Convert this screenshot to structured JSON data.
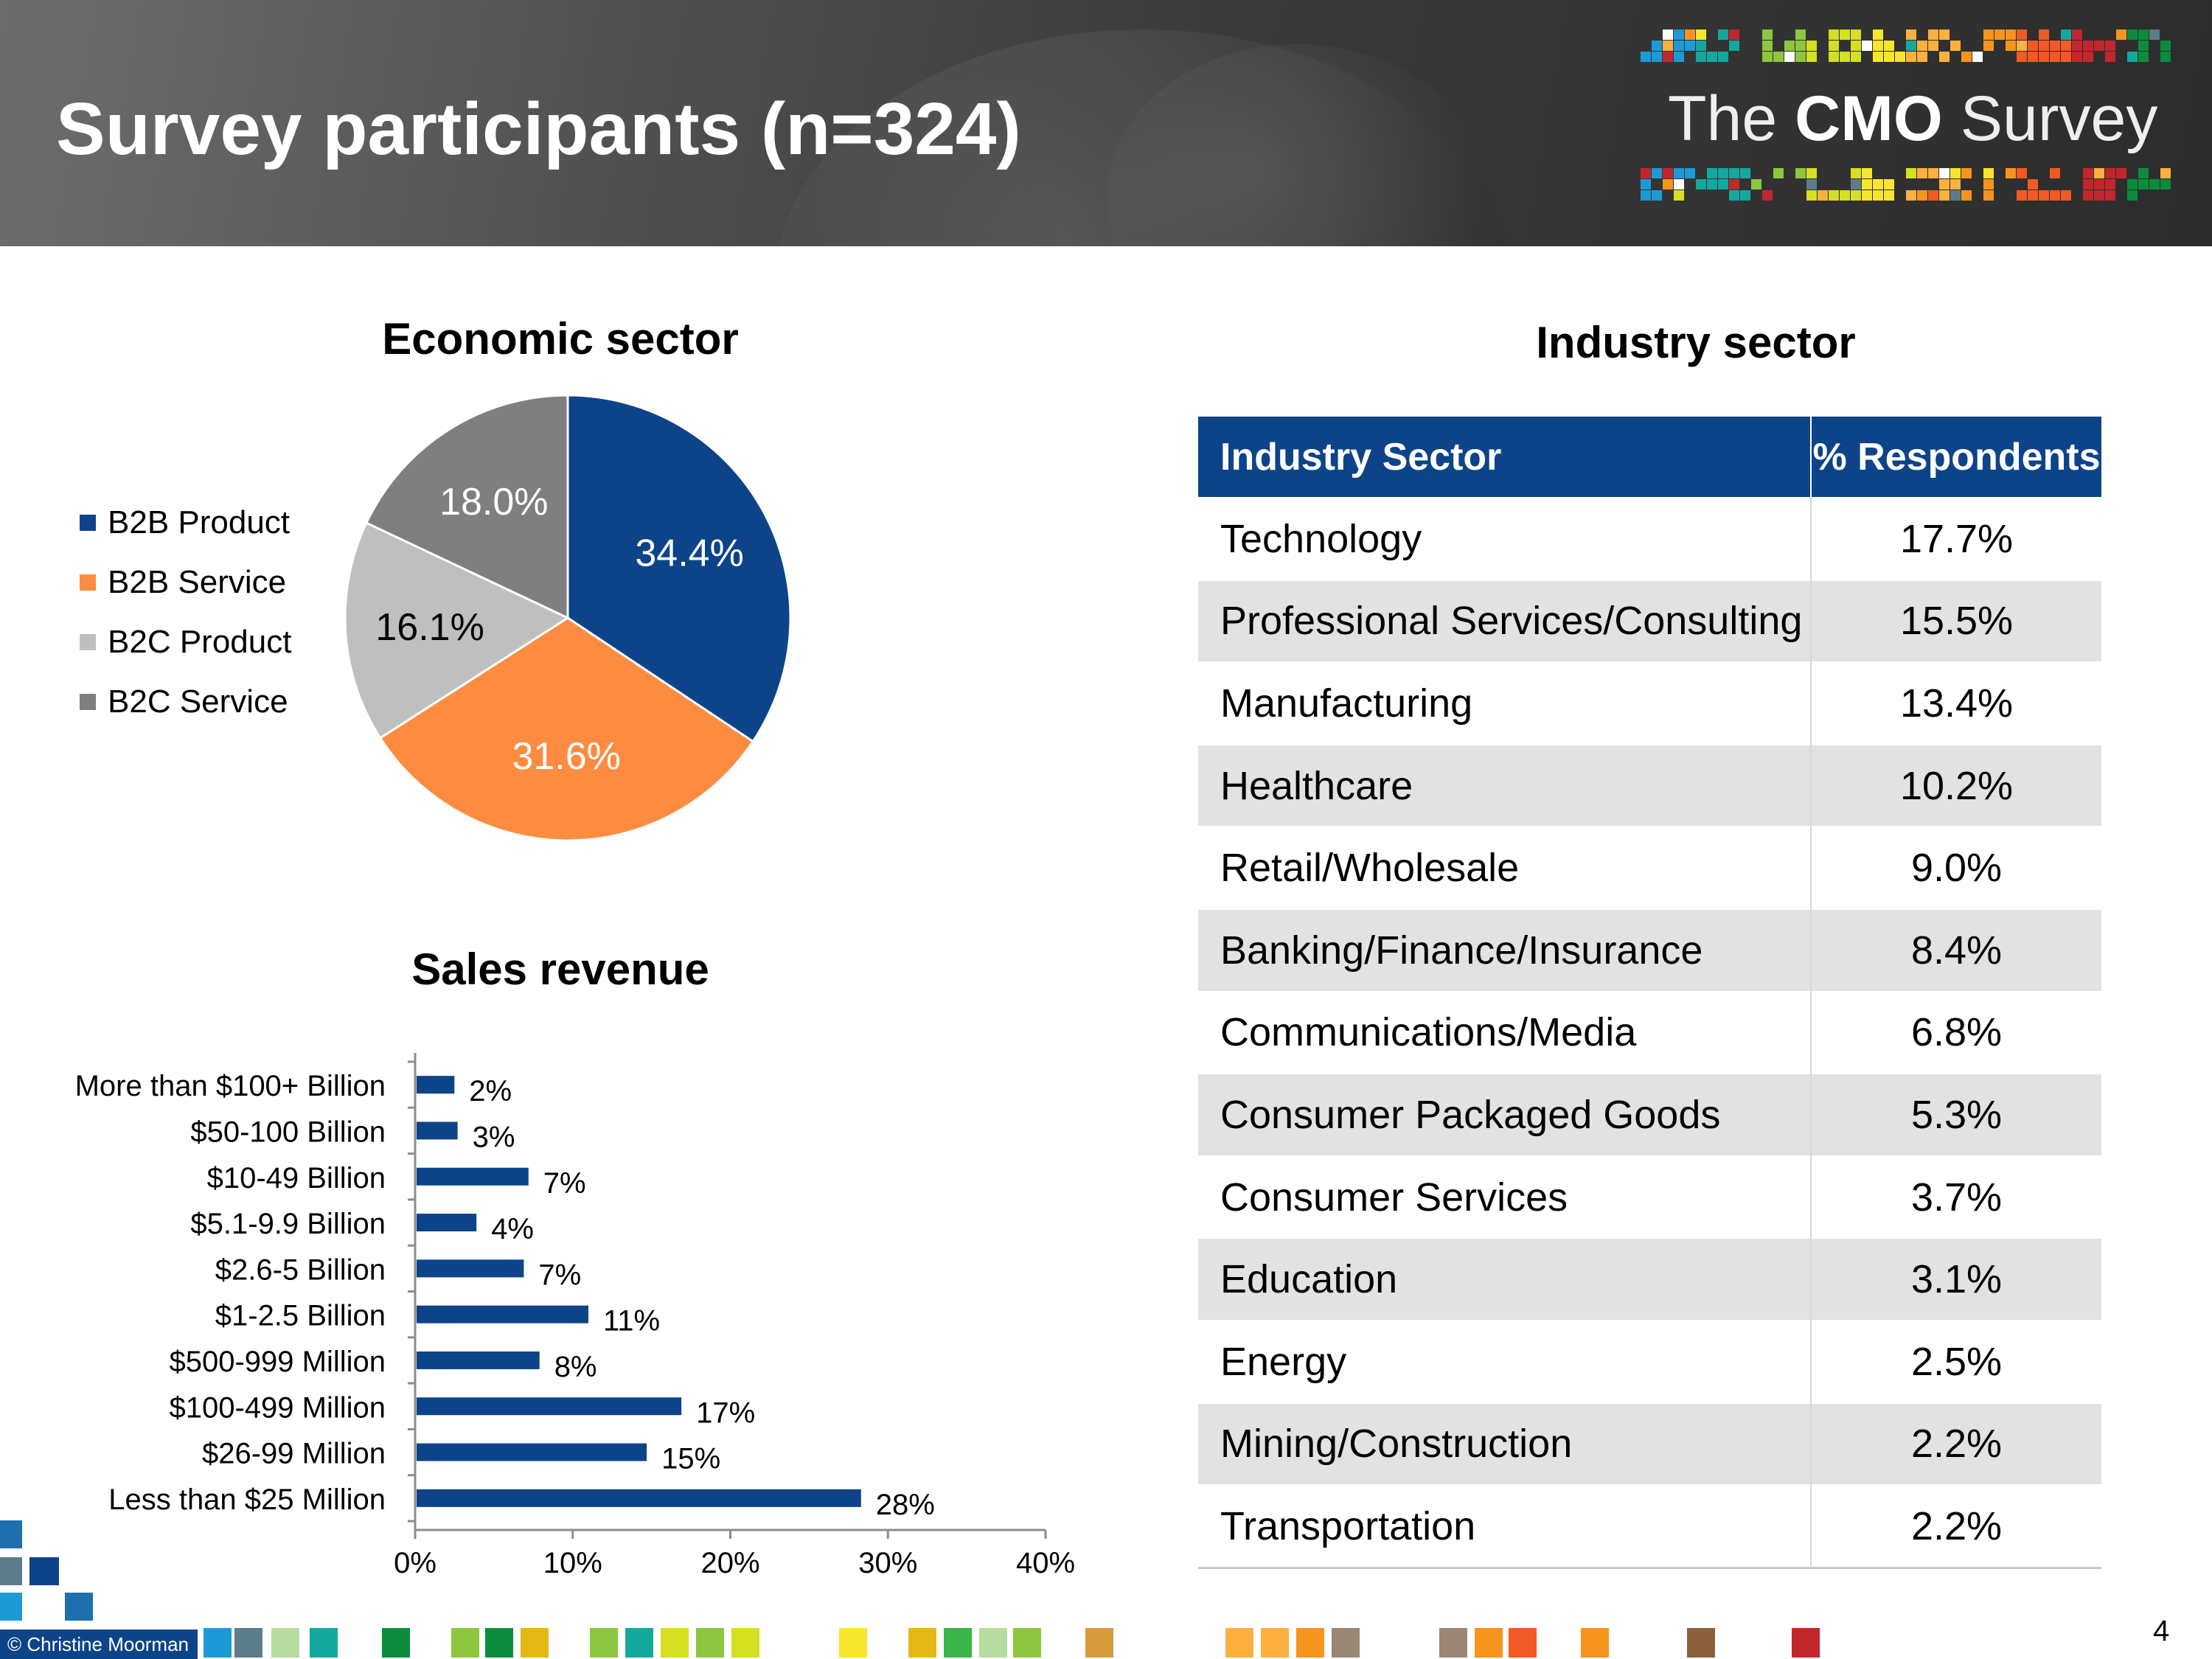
{
  "header": {
    "title": "Survey participants (n=324)",
    "logo": {
      "prefix": "The",
      "brand": "CMO",
      "suffix": "Survey"
    }
  },
  "colors": {
    "header_bg": "#4a4a4a",
    "navy": "#0d4489",
    "orange": "#fd8c41",
    "light_gray": "#bfbfbf",
    "dark_gray": "#7f7f7f",
    "row_alt": "#e2e2e2"
  },
  "chart_data": [
    {
      "type": "pie",
      "title": "Economic sector",
      "categories": [
        "B2B Product",
        "B2B Service",
        "B2C Product",
        "B2C Service"
      ],
      "values": [
        34.4,
        31.6,
        16.1,
        18.0
      ],
      "labels": [
        "34.4%",
        "31.6%",
        "16.1%",
        "18.0%"
      ],
      "colors": [
        "#0d4489",
        "#fd8c41",
        "#bfbfbf",
        "#7f7f7f"
      ],
      "legend_position": "left"
    },
    {
      "type": "bar",
      "orientation": "horizontal",
      "title": "Sales revenue",
      "categories": [
        "More than $100+ Billion",
        "$50-100 Billion",
        "$10-49 Billion",
        "$5.1-9.9 Billion",
        "$2.6-5 Billion",
        "$1-2.5 Billion",
        "$500-999 Million",
        "$100-499 Million",
        "$26-99 Million",
        "Less than $25 Million"
      ],
      "values": [
        2.4,
        2.6,
        7.1,
        3.8,
        6.8,
        10.9,
        7.8,
        16.8,
        14.6,
        28.2
      ],
      "labels": [
        "2%",
        "3%",
        "7%",
        "4%",
        "7%",
        "11%",
        "8%",
        "17%",
        "15%",
        "28%"
      ],
      "xlim": [
        0,
        40
      ],
      "xticks": [
        "0%",
        "10%",
        "20%",
        "30%",
        "40%"
      ],
      "color": "#0d4489",
      "grid": false
    },
    {
      "type": "table",
      "title": "Industry sector",
      "columns": [
        "Industry Sector",
        "% Respondents"
      ],
      "rows": [
        [
          "Technology",
          "17.7%"
        ],
        [
          "Professional Services/Consulting",
          "15.5%"
        ],
        [
          "Manufacturing",
          "13.4%"
        ],
        [
          "Healthcare",
          "10.2%"
        ],
        [
          "Retail/Wholesale",
          "9.0%"
        ],
        [
          "Banking/Finance/Insurance",
          "8.4%"
        ],
        [
          "Communications/Media",
          "6.8%"
        ],
        [
          "Consumer Packaged Goods",
          "5.3%"
        ],
        [
          "Consumer Services",
          "3.7%"
        ],
        [
          "Education",
          "3.1%"
        ],
        [
          "Energy",
          "2.5%"
        ],
        [
          "Mining/Construction",
          "2.2%"
        ],
        [
          "Transportation",
          "2.2%"
        ]
      ]
    }
  ],
  "footer": {
    "credit": "© Christine Moorman",
    "page_number": "4",
    "square_colors": [
      "#1d9ad6",
      "#5c7c8a",
      "#b7dca0",
      "#13a89e",
      "#0a8c3c",
      "#8dc63f",
      "#0a8c3c",
      "#e3b814",
      "#8dc63f",
      "#13a89e",
      "#d4e021",
      "#8dc63f",
      "#d4e021",
      "#f7e62d",
      "#e3b814",
      "#3ab54a",
      "#b7dca0",
      "#8dc63f",
      "#d59b3b",
      "#fbb040",
      "#fbb040",
      "#f7941d",
      "#998675",
      "#998675",
      "#f7941d",
      "#f15a24",
      "#f7941d",
      "#8b5e3c",
      "#c1272d"
    ]
  }
}
